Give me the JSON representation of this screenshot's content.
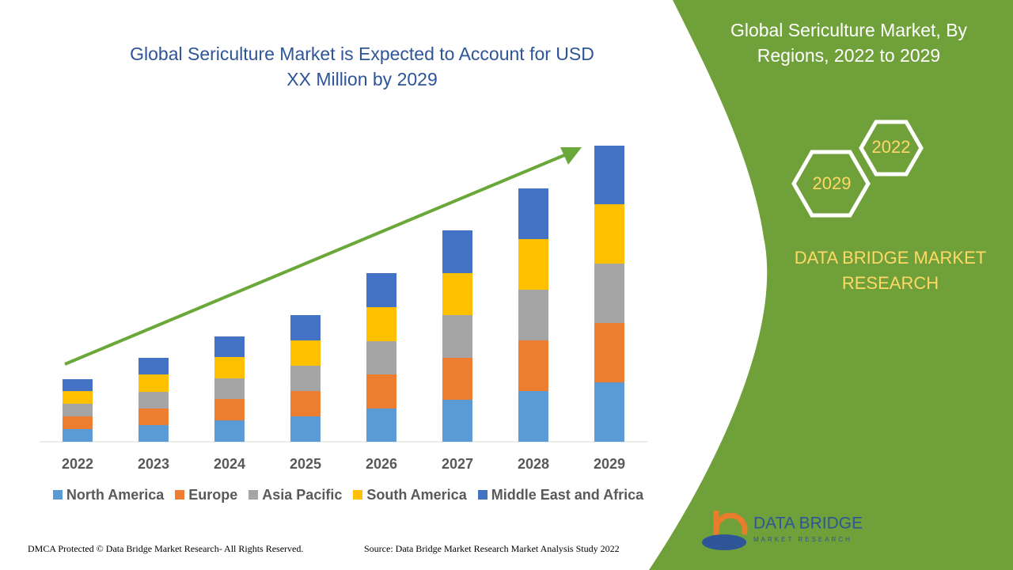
{
  "chart_data": {
    "type": "bar",
    "stacked": true,
    "title": "Global Sericulture Market is Expected to Account for USD XX Million by 2029",
    "categories": [
      "2022",
      "2023",
      "2024",
      "2025",
      "2026",
      "2027",
      "2028",
      "2029"
    ],
    "series": [
      {
        "name": "North America",
        "color": "#5b9bd5",
        "values": [
          16,
          21,
          27,
          32,
          42,
          53,
          64,
          75
        ]
      },
      {
        "name": "Europe",
        "color": "#ed7d31",
        "values": [
          16,
          21,
          27,
          32,
          43,
          53,
          64,
          75
        ]
      },
      {
        "name": "Asia Pacific",
        "color": "#a5a5a5",
        "values": [
          16,
          21,
          26,
          32,
          42,
          54,
          64,
          75
        ]
      },
      {
        "name": "South America",
        "color": "#ffc000",
        "values": [
          16,
          22,
          27,
          32,
          43,
          53,
          64,
          75
        ]
      },
      {
        "name": "Middle East and Africa",
        "color": "#4472c4",
        "values": [
          15,
          21,
          26,
          32,
          43,
          54,
          64,
          74
        ]
      }
    ],
    "ylim": [
      0,
      374
    ]
  },
  "panel": {
    "title": "Global Sericulture Market, By Regions, 2022 to 2029",
    "hexagons": [
      "2022",
      "2029"
    ],
    "brand": "DATA BRIDGE MARKET RESEARCH"
  },
  "logo": {
    "name": "DATA BRIDGE",
    "tagline": "MARKET RESEARCH"
  },
  "footer": {
    "copyright": "DMCA Protected © Data Bridge Market Research- All Rights Reserved.",
    "source": "Source: Data Bridge Market Research Market Analysis Study 2022"
  }
}
